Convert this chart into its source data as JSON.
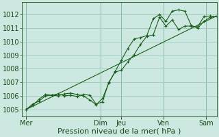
{
  "bg_color": "#cce8e0",
  "grid_color": "#99ccbb",
  "line_color": "#1a5c1a",
  "xlabel": "Pression niveau de la mer( hPa )",
  "xlabel_fontsize": 8,
  "ylabel_fontsize": 7,
  "tick_color": "#1a4a1a",
  "ylim": [
    1004.5,
    1012.9
  ],
  "yticks": [
    1005,
    1006,
    1007,
    1008,
    1009,
    1010,
    1011,
    1012
  ],
  "x_day_labels": [
    "Mer",
    "Dim",
    "Jeu",
    "Ven",
    "Sam"
  ],
  "x_day_positions": [
    0,
    35,
    45,
    65,
    85
  ],
  "xlim": [
    -2,
    90
  ],
  "vlines": [
    0,
    35,
    45,
    65,
    85
  ],
  "series1": [
    [
      0,
      1005.0
    ],
    [
      3,
      1005.3
    ],
    [
      6,
      1005.75
    ],
    [
      9,
      1006.1
    ],
    [
      12,
      1006.05
    ],
    [
      15,
      1006.0
    ],
    [
      18,
      1006.15
    ],
    [
      21,
      1006.2
    ],
    [
      24,
      1006.1
    ],
    [
      27,
      1006.0
    ],
    [
      30,
      1005.7
    ],
    [
      33,
      1005.35
    ],
    [
      36,
      1005.8
    ],
    [
      39,
      1006.95
    ],
    [
      42,
      1007.8
    ],
    [
      45,
      1008.65
    ],
    [
      48,
      1009.5
    ],
    [
      51,
      1010.2
    ],
    [
      54,
      1010.3
    ],
    [
      57,
      1010.45
    ],
    [
      60,
      1011.7
    ],
    [
      63,
      1012.0
    ],
    [
      66,
      1011.5
    ],
    [
      69,
      1012.25
    ],
    [
      72,
      1012.35
    ],
    [
      75,
      1012.25
    ],
    [
      78,
      1011.2
    ],
    [
      81,
      1011.0
    ],
    [
      84,
      1011.5
    ],
    [
      87,
      1011.8
    ],
    [
      90,
      1011.85
    ]
  ],
  "series2": [
    [
      0,
      1005.0
    ],
    [
      3,
      1005.4
    ],
    [
      6,
      1005.6
    ],
    [
      9,
      1006.0
    ],
    [
      12,
      1006.05
    ],
    [
      15,
      1006.15
    ],
    [
      18,
      1006.0
    ],
    [
      21,
      1006.05
    ],
    [
      24,
      1005.95
    ],
    [
      27,
      1006.1
    ],
    [
      30,
      1006.05
    ],
    [
      33,
      1005.4
    ],
    [
      36,
      1005.55
    ],
    [
      39,
      1007.0
    ],
    [
      42,
      1007.75
    ],
    [
      45,
      1007.9
    ],
    [
      48,
      1008.5
    ],
    [
      51,
      1009.05
    ],
    [
      54,
      1009.8
    ],
    [
      57,
      1010.4
    ],
    [
      60,
      1010.5
    ],
    [
      63,
      1011.8
    ],
    [
      66,
      1011.15
    ],
    [
      69,
      1011.6
    ],
    [
      72,
      1010.9
    ],
    [
      75,
      1011.15
    ],
    [
      78,
      1011.15
    ],
    [
      81,
      1011.1
    ],
    [
      84,
      1011.85
    ],
    [
      87,
      1011.9
    ],
    [
      90,
      1011.85
    ]
  ],
  "series3": [
    [
      0,
      1005.0
    ],
    [
      90,
      1011.9
    ]
  ]
}
